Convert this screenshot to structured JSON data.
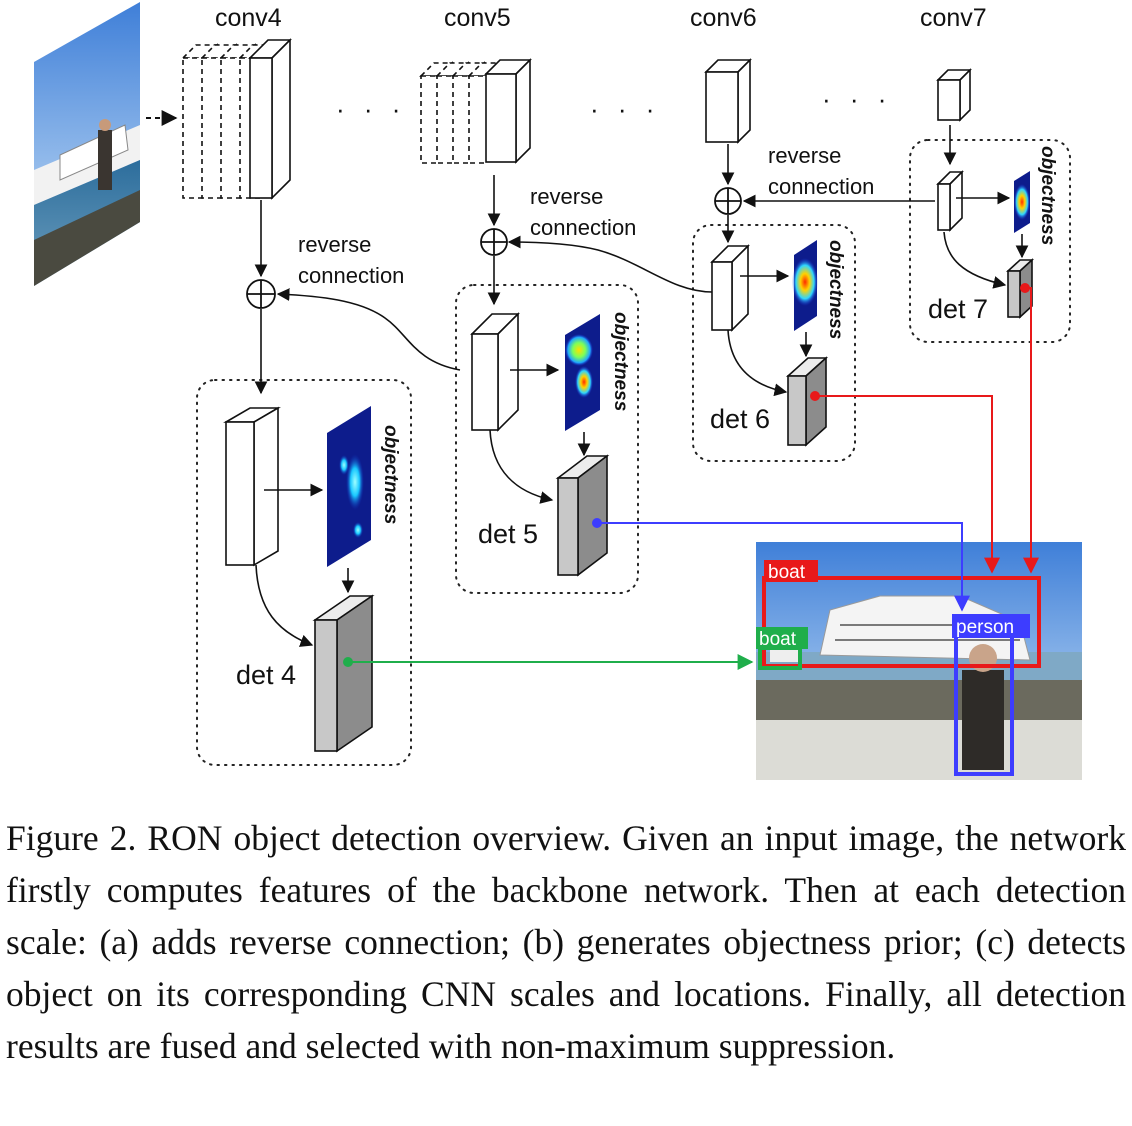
{
  "labels": {
    "conv4": "conv4",
    "conv5": "conv5",
    "conv6": "conv6",
    "conv7": "conv7",
    "ellipsis": "· · ·",
    "reverse": "reverse",
    "connection": "connection",
    "objectness": "objectness",
    "det4": "det 4",
    "det5": "det 5",
    "det6": "det 6",
    "det7": "det 7",
    "boat": "boat",
    "person": "person"
  },
  "colors": {
    "det4_path": "#1fae4b",
    "det5_path": "#3d3dff",
    "det6_path": "#e8191a",
    "det7_path": "#e8191a",
    "boat_box": "#e8191a",
    "boat_small_box": "#1fae4b",
    "person_box": "#3d3dff",
    "det_fill": "#c8c8c8"
  },
  "caption": "Figure 2. RON object detection overview. Given an input image, the network firstly computes features of the backbone network. Then at each detection scale: (a) adds reverse connection; (b) generates objectness prior; (c) detects object on its corresponding CNN scales and locations. Finally, all detection results are fused and selected with non-maximum suppression."
}
